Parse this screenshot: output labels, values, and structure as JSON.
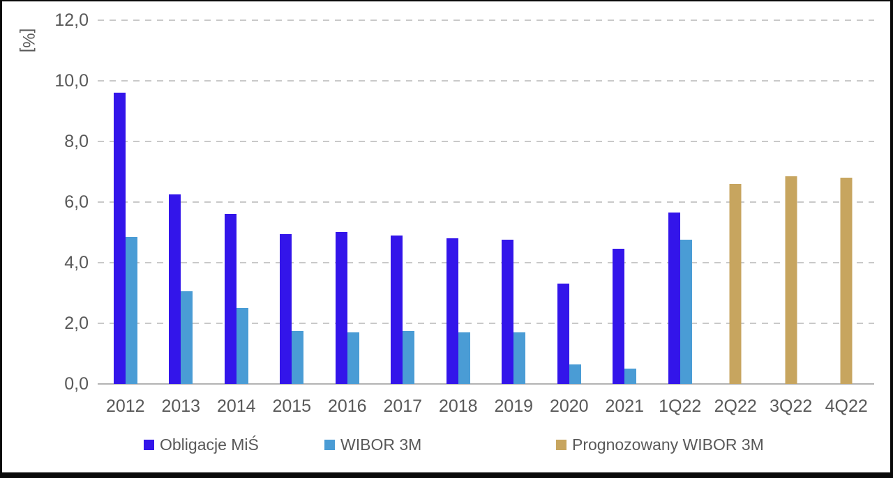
{
  "chart_data": {
    "type": "bar",
    "title": "",
    "ylabel": "[%]",
    "xlabel": "",
    "ylim": [
      0,
      12
    ],
    "grid": "horizontal-dashed",
    "legend_position": "bottom",
    "yticks": [
      {
        "value": 0,
        "label": "0,0"
      },
      {
        "value": 2,
        "label": "2,0"
      },
      {
        "value": 4,
        "label": "4,0"
      },
      {
        "value": 6,
        "label": "6,0"
      },
      {
        "value": 8,
        "label": "8,0"
      },
      {
        "value": 10,
        "label": "10,0"
      },
      {
        "value": 12,
        "label": "12,0"
      }
    ],
    "categories": [
      "2012",
      "2013",
      "2014",
      "2015",
      "2016",
      "2017",
      "2018",
      "2019",
      "2020",
      "2021",
      "1Q22",
      "2Q22",
      "3Q22",
      "4Q22"
    ],
    "series": [
      {
        "id": "obligacje-mis",
        "name": "Obligacje MiŚ",
        "color": "#3315EA",
        "values": [
          9.6,
          6.25,
          5.6,
          4.95,
          5.0,
          4.9,
          4.8,
          4.75,
          3.3,
          4.45,
          5.65,
          null,
          null,
          null
        ]
      },
      {
        "id": "wibor-3m",
        "name": "WIBOR 3M",
        "color": "#4A9CD5",
        "values": [
          4.85,
          3.05,
          2.5,
          1.75,
          1.7,
          1.75,
          1.7,
          1.7,
          0.65,
          0.5,
          4.75,
          null,
          null,
          null
        ]
      },
      {
        "id": "prognozowany-wibor-3m",
        "name": "Prognozowany WIBOR 3M",
        "color": "#C7A55F",
        "values": [
          null,
          null,
          null,
          null,
          null,
          null,
          null,
          null,
          null,
          null,
          null,
          6.6,
          6.85,
          6.8
        ]
      }
    ],
    "colors": {
      "axis_text": "#595959",
      "gridline": "#c9c9c9",
      "baseline": "#b3b3b3",
      "frame_border": "#0a0a0a"
    }
  }
}
